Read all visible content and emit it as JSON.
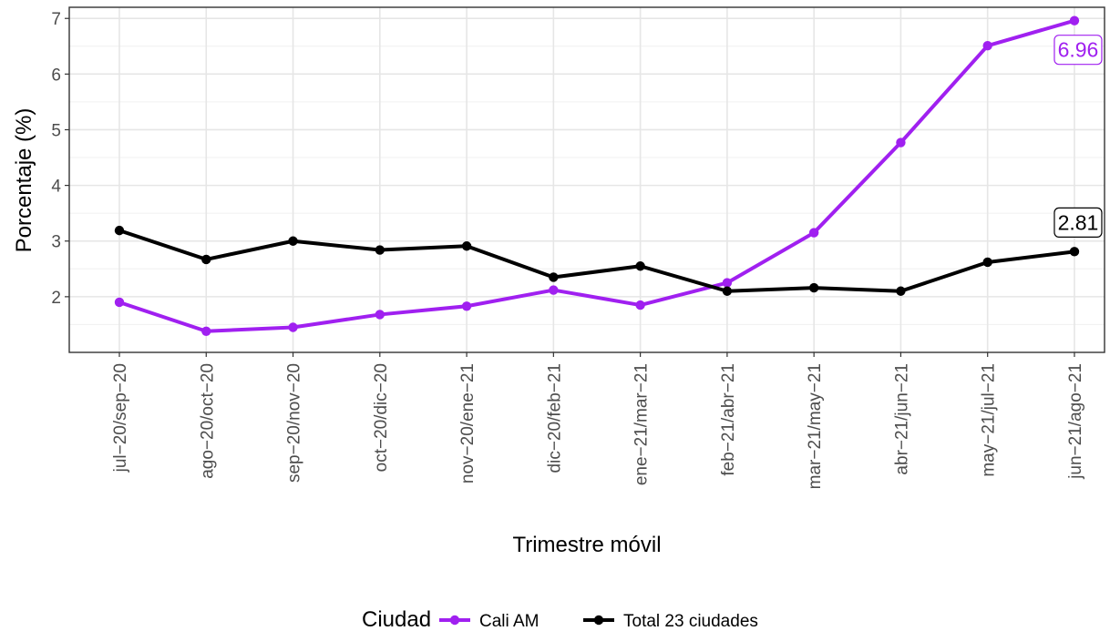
{
  "chart_data": {
    "type": "line",
    "xlabel": "Trimestre móvil",
    "ylabel": "Porcentaje (%)",
    "categories": [
      "jul−20/sep−20",
      "ago−20/oct−20",
      "sep−20/nov−20",
      "oct−20/dic−20",
      "nov−20/ene−21",
      "dic−20/feb−21",
      "ene−21/mar−21",
      "feb−21/abr−21",
      "mar−21/may−21",
      "abr−21/jun−21",
      "may−21/jul−21",
      "jun−21/ago−21"
    ],
    "ylim": [
      1.0,
      7.2
    ],
    "yticks": [
      2,
      3,
      4,
      5,
      6,
      7
    ],
    "grid": true,
    "legend_title": "Ciudad",
    "legend_position": "bottom",
    "series": [
      {
        "name": "Cali AM",
        "color": "#a020f0",
        "values": [
          1.9,
          1.38,
          1.45,
          1.68,
          1.83,
          2.12,
          1.85,
          2.25,
          3.15,
          4.77,
          6.51,
          6.96
        ],
        "end_label": "6.96"
      },
      {
        "name": "Total 23 ciudades",
        "color": "#000000",
        "values": [
          3.19,
          2.67,
          3.0,
          2.84,
          2.91,
          2.35,
          2.55,
          2.1,
          2.16,
          2.1,
          2.62,
          2.81
        ],
        "end_label": "2.81"
      }
    ]
  }
}
